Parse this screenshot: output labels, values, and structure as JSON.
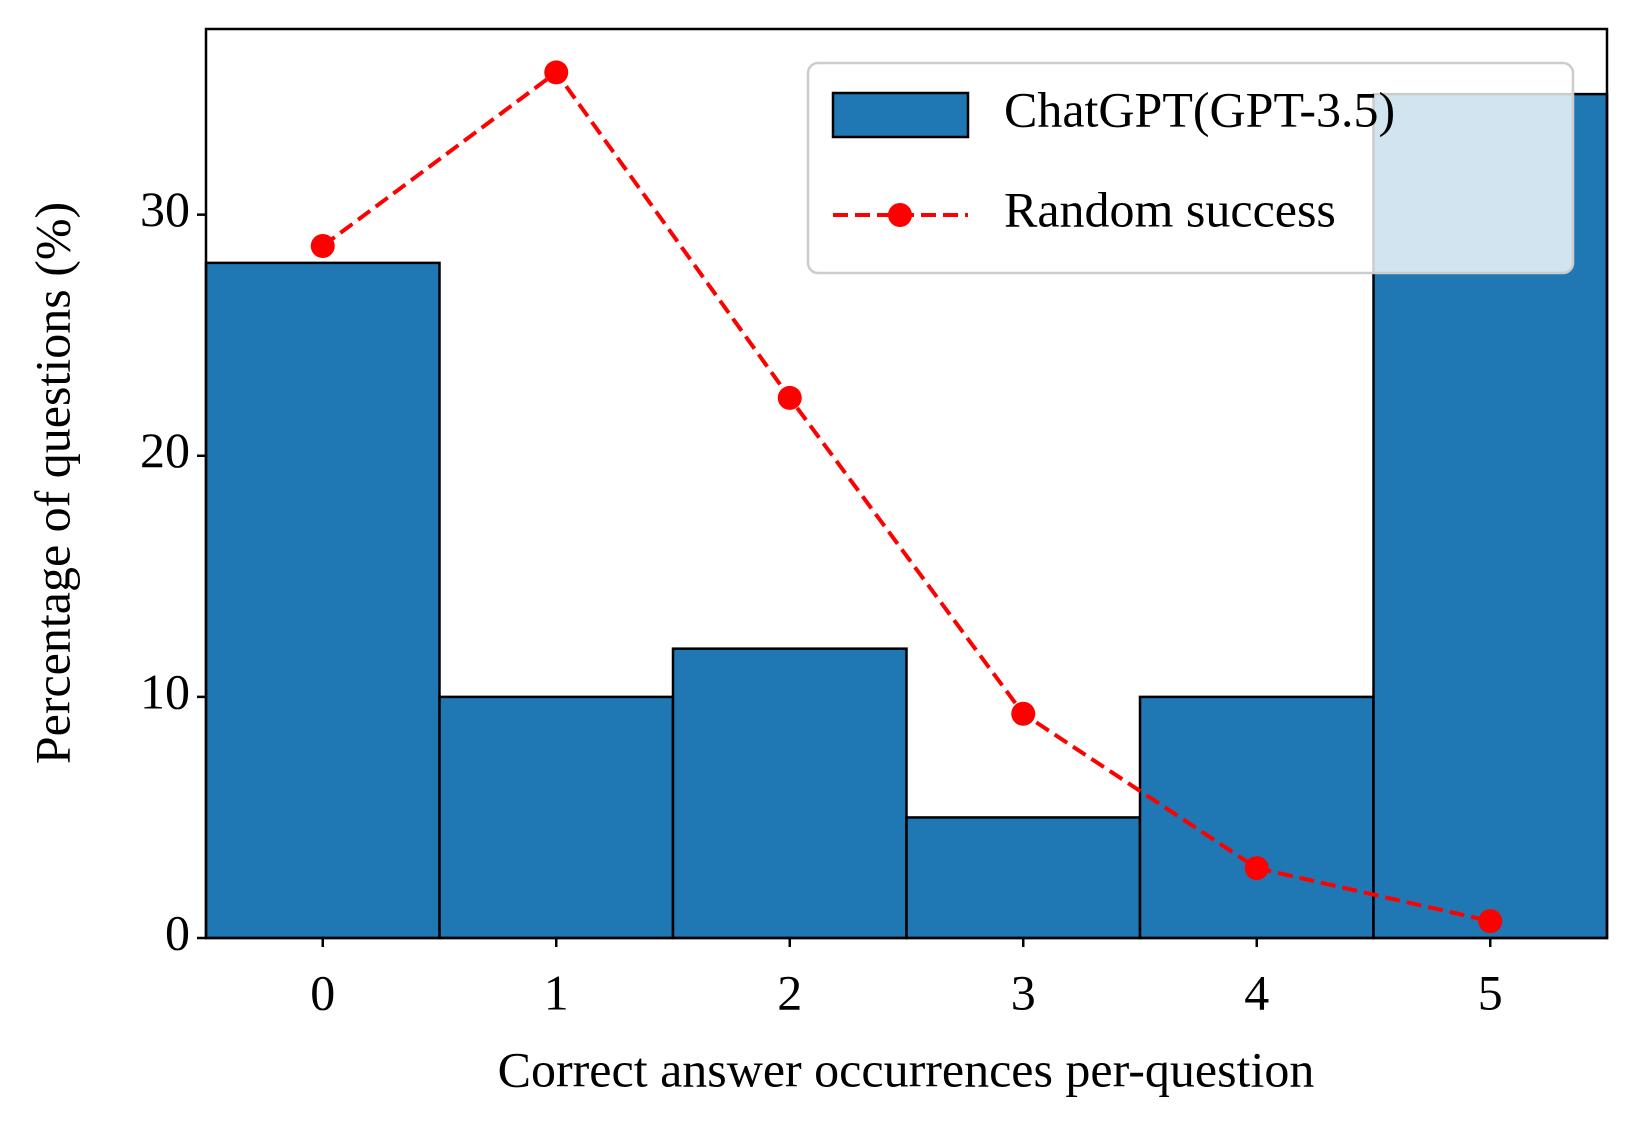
{
  "chart_data": {
    "type": "bar",
    "x_label": "Correct answer occurrences per-question",
    "y_label": "Percentage of questions (%)",
    "x": [
      0,
      1,
      2,
      3,
      4,
      5
    ],
    "series": [
      {
        "name": "ChatGPT(GPT-3.5)",
        "type": "bar",
        "color": "#1f77b4",
        "values": [
          28,
          10,
          12,
          5,
          10,
          35
        ]
      },
      {
        "name": "Random success",
        "type": "line",
        "color": "#ff0000",
        "values": [
          28.7,
          35.9,
          22.4,
          9.3,
          2.9,
          0.7
        ]
      }
    ],
    "xlim": [
      -0.5,
      5.5
    ],
    "xticks": [
      0,
      1,
      2,
      3,
      4,
      5
    ],
    "ylim": [
      0,
      37.7
    ],
    "yticks": [
      0,
      10,
      20,
      30
    ],
    "legend": "upper right"
  }
}
